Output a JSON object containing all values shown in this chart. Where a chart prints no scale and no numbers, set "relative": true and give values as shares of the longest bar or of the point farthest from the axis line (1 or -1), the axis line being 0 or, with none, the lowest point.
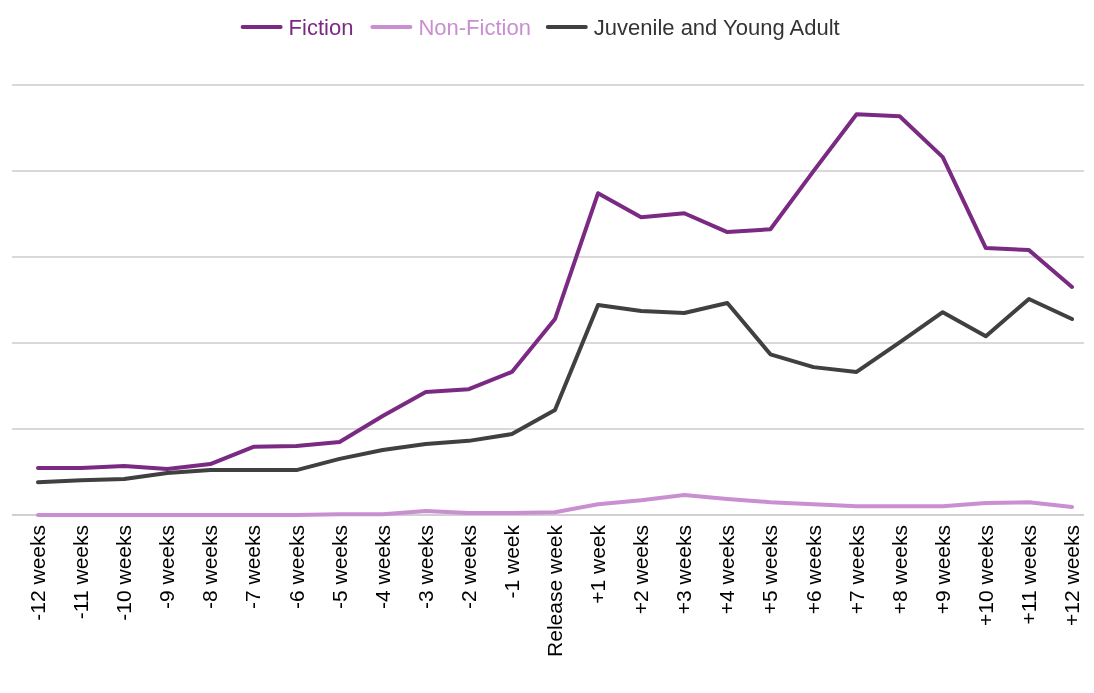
{
  "chart_data": {
    "type": "line",
    "relative": true,
    "grid": true,
    "legend": "top",
    "line_style": "solid",
    "marker": "none",
    "categories": [
      "-12 weeks",
      "-11 weeks",
      "-10 weeks",
      "-9 weeks",
      "-8 weeks",
      "-7 weeks",
      "-6 weeks",
      "-5 weeks",
      "-4 weeks",
      "-3 weeks",
      "-2 weeks",
      "-1 week",
      "Release week",
      "+1 week",
      "+2 weeks",
      "+3 weeks",
      "+4 weeks",
      "+5 weeks",
      "+6 weeks",
      "+7 weeks",
      "+8 weeks",
      "+9 weeks",
      "+10 weeks",
      "+11 weeks",
      "+12 weeks"
    ],
    "series": [
      {
        "name": "Fiction",
        "color": "#7b2a83",
        "values": [
          0.117,
          0.117,
          0.122,
          0.115,
          0.127,
          0.17,
          0.172,
          0.182,
          0.247,
          0.307,
          0.314,
          0.357,
          0.489,
          0.803,
          0.743,
          0.753,
          0.706,
          0.713,
          0.858,
          1,
          0.995,
          0.893,
          0.666,
          0.661,
          0.569
        ]
      },
      {
        "name": "Non-Fiction",
        "color": "#c98fd0",
        "values": [
          0,
          0,
          0,
          0,
          0,
          0,
          0,
          0.002,
          0.002,
          0.01,
          0.005,
          0.005,
          0.007,
          0.027,
          0.037,
          0.05,
          0.04,
          0.032,
          0.027,
          0.022,
          0.022,
          0.022,
          0.03,
          0.032,
          0.02
        ]
      },
      {
        "name": "Juvenile and Young Adult",
        "color": "#404040",
        "values": [
          0.082,
          0.087,
          0.09,
          0.105,
          0.112,
          0.112,
          0.112,
          0.14,
          0.162,
          0.177,
          0.185,
          0.202,
          0.262,
          0.524,
          0.509,
          0.504,
          0.529,
          0.401,
          0.369,
          0.357,
          0.431,
          0.506,
          0.446,
          0.539,
          0.489
        ]
      }
    ]
  }
}
